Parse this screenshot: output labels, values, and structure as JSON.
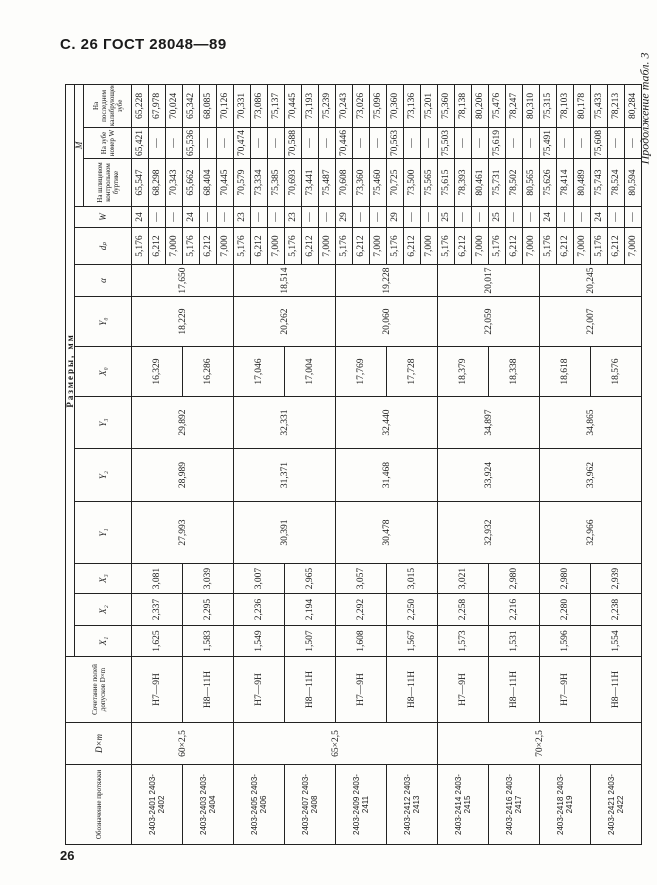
{
  "page_header": "С. 26 ГОСТ 28048—89",
  "caption": "Продолжение табл. 3",
  "page_number": "26",
  "table": {
    "headers": {
      "designation": "Обозначение протяжки",
      "dxm": "D×m",
      "tolerance": "Сочетание полей допусков D×m",
      "dimensions": "Размеры, мм",
      "x1": "X₁",
      "x2": "X₂",
      "x3": "X₃",
      "y1": "Y₁",
      "y2": "Y₂",
      "y3": "Y₃",
      "x0": "X₀",
      "y0": "Y₀",
      "alpha": "α",
      "dp": "dₚ",
      "w": "W",
      "m": "M",
      "m_spline": "На шлицевом контрольном буртике",
      "m_tooth_w": "На зубе номер W",
      "m_last": "На последнем калибрующем зубе"
    },
    "dxm_groups": [
      {
        "value": "60×2,5",
        "groups": 2
      },
      {
        "value": "65×2,5",
        "groups": 4
      },
      {
        "value": "70×2,5",
        "groups": 4
      }
    ],
    "pairs": [
      {
        "y1": "27,993",
        "y2": "28,989",
        "y3": "29,892",
        "y0": "18,229",
        "alpha": "17,650"
      },
      {
        "y1": "30,391",
        "y2": "31,371",
        "y3": "32,331",
        "y0": "20,262",
        "alpha": "18,514"
      },
      {
        "y1": "30,478",
        "y2": "31,468",
        "y3": "32,440",
        "y0": "20,060",
        "alpha": "19,228"
      },
      {
        "y1": "32,932",
        "y2": "33,924",
        "y3": "34,897",
        "y0": "22,059",
        "alpha": "20,017"
      },
      {
        "y1": "32,966",
        "y2": "33,962",
        "y3": "34,865",
        "y0": "22,007",
        "alpha": "20,245"
      }
    ],
    "groups": [
      {
        "designation": "2403-2401 2403-2402",
        "tolerance": "H7—9H",
        "x1": "1,625",
        "x2": "2,337",
        "x3": "3,081",
        "x0": "16,329",
        "rows": [
          {
            "dp": "5,176",
            "w": "24",
            "m_spline": "65,547",
            "m_tooth_w": "65,421",
            "m_last": "65,228"
          },
          {
            "dp": "6,212",
            "w": "—",
            "m_spline": "68,298",
            "m_tooth_w": "—",
            "m_last": "67,978"
          },
          {
            "dp": "7,000",
            "w": "—",
            "m_spline": "70,343",
            "m_tooth_w": "—",
            "m_last": "70,024"
          }
        ]
      },
      {
        "designation": "2403-2403 2403-2404",
        "tolerance": "H8—11H",
        "x1": "1,583",
        "x2": "2,295",
        "x3": "3,039",
        "x0": "16,286",
        "rows": [
          {
            "dp": "5,176",
            "w": "24",
            "m_spline": "65,662",
            "m_tooth_w": "65,536",
            "m_last": "65,342"
          },
          {
            "dp": "6,212",
            "w": "—",
            "m_spline": "68,404",
            "m_tooth_w": "—",
            "m_last": "68,085"
          },
          {
            "dp": "7,000",
            "w": "—",
            "m_spline": "70,445",
            "m_tooth_w": "—",
            "m_last": "70,126"
          }
        ]
      },
      {
        "designation": "2403-2405 2403-2406",
        "tolerance": "H7—9H",
        "x1": "1,549",
        "x2": "2,236",
        "x3": "3,007",
        "x0": "17,046",
        "rows": [
          {
            "dp": "5,176",
            "w": "23",
            "m_spline": "70,579",
            "m_tooth_w": "70,474",
            "m_last": "70,331"
          },
          {
            "dp": "6,212",
            "w": "—",
            "m_spline": "73,334",
            "m_tooth_w": "—",
            "m_last": "73,086"
          },
          {
            "dp": "7,000",
            "w": "—",
            "m_spline": "75,385",
            "m_tooth_w": "—",
            "m_last": "75,137"
          }
        ]
      },
      {
        "designation": "2403-2407 2403-2408",
        "tolerance": "H8—11H",
        "x1": "1,507",
        "x2": "2,194",
        "x3": "2,965",
        "x0": "17,004",
        "rows": [
          {
            "dp": "5,176",
            "w": "23",
            "m_spline": "70,693",
            "m_tooth_w": "70,588",
            "m_last": "70,445"
          },
          {
            "dp": "6,212",
            "w": "—",
            "m_spline": "73,441",
            "m_tooth_w": "—",
            "m_last": "73,193"
          },
          {
            "dp": "7,000",
            "w": "—",
            "m_spline": "75,487",
            "m_tooth_w": "—",
            "m_last": "75,239"
          }
        ]
      },
      {
        "designation": "2403-2409 2403-2411",
        "tolerance": "H7—9H",
        "x1": "1,608",
        "x2": "2,292",
        "x3": "3,057",
        "x0": "17,769",
        "rows": [
          {
            "dp": "5,176",
            "w": "29",
            "m_spline": "70,608",
            "m_tooth_w": "70,446",
            "m_last": "70,243"
          },
          {
            "dp": "6,212",
            "w": "—",
            "m_spline": "73,360",
            "m_tooth_w": "—",
            "m_last": "73,026"
          },
          {
            "dp": "7,000",
            "w": "—",
            "m_spline": "75,460",
            "m_tooth_w": "—",
            "m_last": "75,096"
          }
        ]
      },
      {
        "designation": "2403-2412 2403-2413",
        "tolerance": "H8—11H",
        "x1": "1,567",
        "x2": "2,250",
        "x3": "3,015",
        "x0": "17,728",
        "rows": [
          {
            "dp": "5,176",
            "w": "29",
            "m_spline": "70,725",
            "m_tooth_w": "70,563",
            "m_last": "70,360"
          },
          {
            "dp": "6,212",
            "w": "—",
            "m_spline": "73,500",
            "m_tooth_w": "—",
            "m_last": "73,136"
          },
          {
            "dp": "7,000",
            "w": "—",
            "m_spline": "75,565",
            "m_tooth_w": "—",
            "m_last": "75,201"
          }
        ]
      },
      {
        "designation": "2403-2414 2403-2415",
        "tolerance": "H7—9H",
        "x1": "1,573",
        "x2": "2,258",
        "x3": "3,021",
        "x0": "18,379",
        "rows": [
          {
            "dp": "5,176",
            "w": "25",
            "m_spline": "75,615",
            "m_tooth_w": "75,503",
            "m_last": "75,360"
          },
          {
            "dp": "6,212",
            "w": "—",
            "m_spline": "78,393",
            "m_tooth_w": "—",
            "m_last": "78,138"
          },
          {
            "dp": "7,000",
            "w": "—",
            "m_spline": "80,461",
            "m_tooth_w": "—",
            "m_last": "80,206"
          }
        ]
      },
      {
        "designation": "2403-2416 2403-2417",
        "tolerance": "H8—11H",
        "x1": "1,531",
        "x2": "2,216",
        "x3": "2,980",
        "x0": "18,338",
        "rows": [
          {
            "dp": "5,176",
            "w": "25",
            "m_spline": "75,731",
            "m_tooth_w": "75,619",
            "m_last": "75,476"
          },
          {
            "dp": "6,212",
            "w": "—",
            "m_spline": "78,502",
            "m_tooth_w": "—",
            "m_last": "78,247"
          },
          {
            "dp": "7,000",
            "w": "—",
            "m_spline": "80,565",
            "m_tooth_w": "—",
            "m_last": "80,310"
          }
        ]
      },
      {
        "designation": "2403-2418 2403-2419",
        "tolerance": "H7—9H",
        "x1": "1,596",
        "x2": "2,280",
        "x3": "2,980",
        "x0": "18,618",
        "rows": [
          {
            "dp": "5,176",
            "w": "24",
            "m_spline": "75,626",
            "m_tooth_w": "75,491",
            "m_last": "75,315"
          },
          {
            "dp": "6,212",
            "w": "—",
            "m_spline": "78,414",
            "m_tooth_w": "—",
            "m_last": "78,103"
          },
          {
            "dp": "7,000",
            "w": "—",
            "m_spline": "80,489",
            "m_tooth_w": "—",
            "m_last": "80,178"
          }
        ]
      },
      {
        "designation": "2403-2421 2403-2422",
        "tolerance": "H8—11H",
        "x1": "1,554",
        "x2": "2,238",
        "x3": "2,939",
        "x0": "18,576",
        "rows": [
          {
            "dp": "5,176",
            "w": "24",
            "m_spline": "75,743",
            "m_tooth_w": "75,608",
            "m_last": "75,433"
          },
          {
            "dp": "6,212",
            "w": "—",
            "m_spline": "78,524",
            "m_tooth_w": "—",
            "m_last": "78,213"
          },
          {
            "dp": "7,000",
            "w": "—",
            "m_spline": "80,594",
            "m_tooth_w": "—",
            "m_last": "80,284"
          }
        ]
      }
    ]
  }
}
